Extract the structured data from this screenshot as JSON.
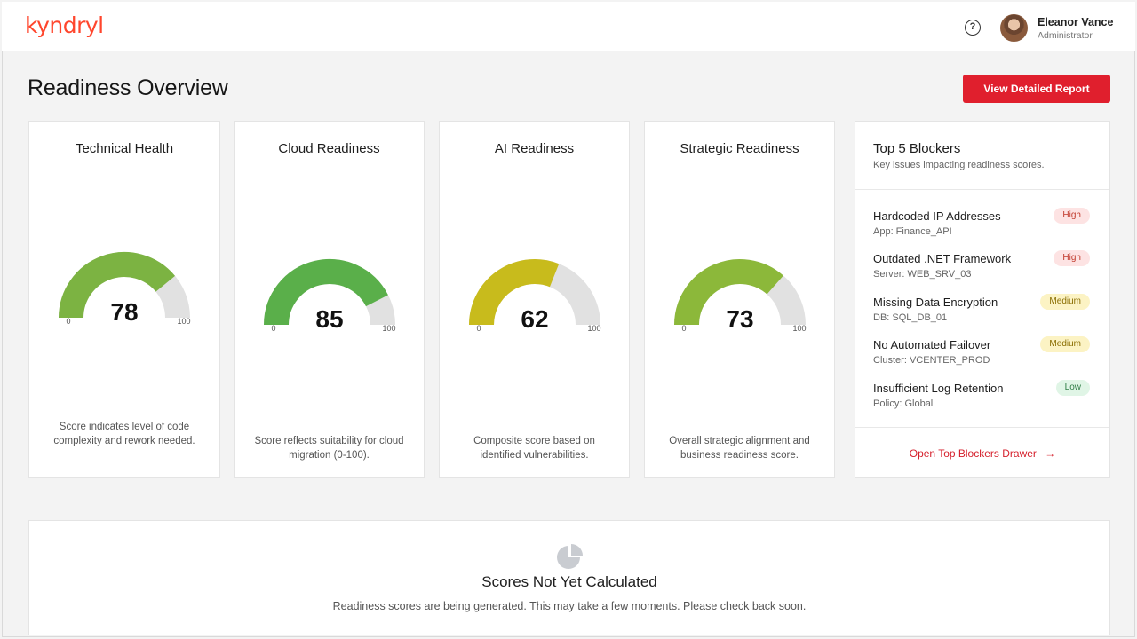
{
  "header": {
    "logo": "kyndryl",
    "user": {
      "name": "Eleanor Vance",
      "role": "Administrator"
    },
    "help_icon": "help-circle-icon"
  },
  "page": {
    "title": "Readiness Overview",
    "report_button": "View Detailed Report"
  },
  "gauges": [
    {
      "title": "Technical Health",
      "score": 78,
      "min": "0",
      "max": "100",
      "color": "#7cb342",
      "description": "Score indicates level of code complexity and rework needed."
    },
    {
      "title": "Cloud Readiness",
      "score": 85,
      "min": "0",
      "max": "100",
      "color": "#5aaf4a",
      "description": "Score reflects suitability for cloud migration (0-100)."
    },
    {
      "title": "AI Readiness",
      "score": 62,
      "min": "0",
      "max": "100",
      "color": "#c8bb1c",
      "description": "Composite score based on identified vulnerabilities."
    },
    {
      "title": "Strategic Readiness",
      "score": 73,
      "min": "0",
      "max": "100",
      "color": "#8cb83a",
      "description": "Overall strategic alignment and business readiness score."
    }
  ],
  "blockers": {
    "title": "Top 5 Blockers",
    "subtitle": "Key issues impacting readiness scores.",
    "items": [
      {
        "title": "Hardcoded IP Addresses",
        "meta": "App: Finance_API",
        "severity": "High",
        "level": "high"
      },
      {
        "title": "Outdated .NET Framework",
        "meta": "Server: WEB_SRV_03",
        "severity": "High",
        "level": "high"
      },
      {
        "title": "Missing Data Encryption",
        "meta": "DB: SQL_DB_01",
        "severity": "Medium",
        "level": "medium"
      },
      {
        "title": "No Automated Failover",
        "meta": "Cluster: VCENTER_PROD",
        "severity": "Medium",
        "level": "medium"
      },
      {
        "title": "Insufficient Log Retention",
        "meta": "Policy: Global",
        "severity": "Low",
        "level": "low"
      }
    ],
    "drawer_link": "Open Top Blockers Drawer",
    "drawer_icon": "arrow-right-icon"
  },
  "empty_state": {
    "icon": "pie-chart-icon",
    "title": "Scores Not Yet Calculated",
    "description": "Readiness scores are being generated. This may take a few moments. Please check back soon."
  }
}
